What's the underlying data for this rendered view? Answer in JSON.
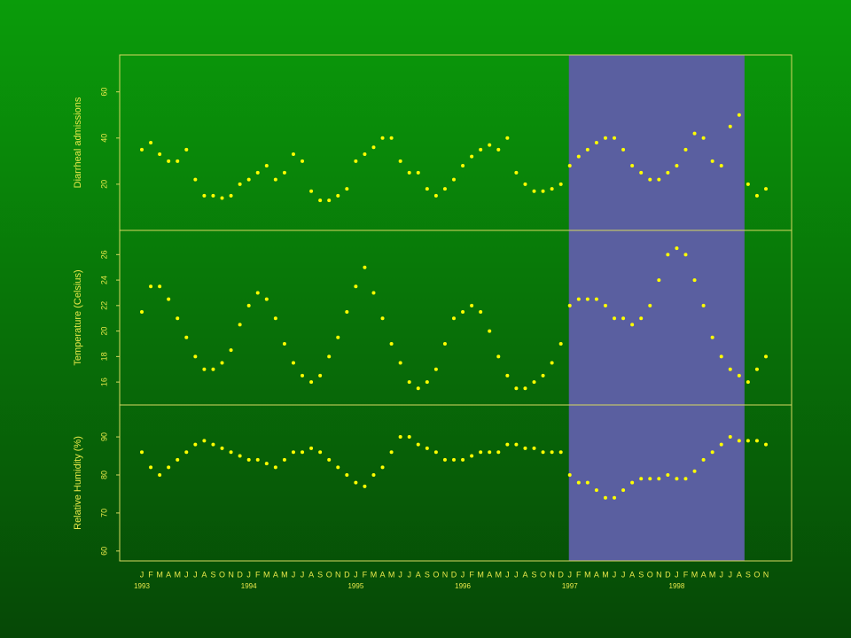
{
  "chart_data": [
    {
      "type": "scatter",
      "ylabel": "Diarrheal admissions",
      "ylim": [
        0,
        76
      ],
      "yticks": [
        20,
        40,
        60
      ],
      "color": "#ffff00",
      "highlight": [
        47.9,
        67.6
      ],
      "highlight_color": "#5a5fa0",
      "values": [
        35,
        38,
        33,
        30,
        30,
        35,
        22,
        15,
        15,
        14,
        15,
        20,
        22,
        25,
        28,
        22,
        25,
        33,
        30,
        17,
        13,
        13,
        15,
        18,
        30,
        33,
        36,
        40,
        40,
        30,
        25,
        25,
        18,
        15,
        18,
        22,
        28,
        32,
        35,
        37,
        35,
        40,
        25,
        20,
        17,
        17,
        18,
        20,
        28,
        32,
        35,
        38,
        40,
        40,
        35,
        28,
        25,
        22,
        22,
        25,
        28,
        35,
        42,
        40,
        30,
        28,
        45,
        50,
        20,
        15,
        18
      ]
    },
    {
      "type": "scatter",
      "ylabel": "Temperature (Celsius)",
      "ylim": [
        14.2,
        27.9
      ],
      "yticks": [
        16,
        18,
        20,
        22,
        24,
        26
      ],
      "color": "#ffff00",
      "highlight": [
        47.9,
        67.6
      ],
      "highlight_color": "#5a5fa0",
      "values": [
        21.5,
        23.5,
        23.5,
        22.5,
        21,
        19.5,
        18,
        17,
        17,
        17.5,
        18.5,
        20.5,
        22,
        23,
        22.5,
        21,
        19,
        17.5,
        16.5,
        16,
        16.5,
        18,
        19.5,
        21.5,
        23.5,
        25,
        23,
        21,
        19,
        17.5,
        16,
        15.5,
        16,
        17,
        19,
        21,
        21.5,
        22,
        21.5,
        20,
        18,
        16.5,
        15.5,
        15.5,
        16,
        16.5,
        17.5,
        19,
        22,
        22.5,
        22.5,
        22.5,
        22,
        21,
        21,
        20.5,
        21,
        22,
        24,
        26,
        26.5,
        26,
        24,
        22,
        19.5,
        18,
        17,
        16.5,
        16,
        17,
        18
      ]
    },
    {
      "type": "scatter",
      "ylabel": "Relative Humidity (%)",
      "ylim": [
        57.4,
        98.4
      ],
      "yticks": [
        60,
        70,
        80,
        90
      ],
      "color": "#ffff00",
      "highlight": [
        47.9,
        67.6
      ],
      "highlight_color": "#5a5fa0",
      "values": [
        86,
        82,
        80,
        82,
        84,
        86,
        88,
        89,
        88,
        87,
        86,
        85,
        84,
        84,
        83,
        82,
        84,
        86,
        86,
        87,
        86,
        84,
        82,
        80,
        78,
        77,
        80,
        82,
        86,
        90,
        90,
        88,
        87,
        86,
        84,
        84,
        84,
        85,
        86,
        86,
        86,
        88,
        88,
        87,
        87,
        86,
        86,
        86,
        80,
        78,
        78,
        76,
        74,
        74,
        76,
        78,
        79,
        79,
        79,
        80,
        79,
        79,
        81,
        84,
        86,
        88,
        90,
        89,
        89,
        89,
        88
      ],
      "categories": [
        "J",
        "F",
        "M",
        "A",
        "M",
        "J",
        "J",
        "A",
        "S",
        "O",
        "N",
        "D",
        "J",
        "F",
        "M",
        "A",
        "M",
        "J",
        "J",
        "A",
        "S",
        "O",
        "N",
        "D",
        "J",
        "F",
        "M",
        "A",
        "M",
        "J",
        "J",
        "A",
        "S",
        "O",
        "N",
        "D",
        "J",
        "F",
        "M",
        "A",
        "M",
        "J",
        "J",
        "A",
        "S",
        "O",
        "N",
        "D",
        "J",
        "F",
        "M",
        "A",
        "M",
        "J",
        "J",
        "A",
        "S",
        "O",
        "N",
        "D",
        "J",
        "F",
        "M",
        "A",
        "M",
        "J",
        "J",
        "A",
        "S",
        "O",
        "N"
      ],
      "years": [
        "1993",
        "1994",
        "1995",
        "1996",
        "1997",
        "1998"
      ]
    }
  ]
}
